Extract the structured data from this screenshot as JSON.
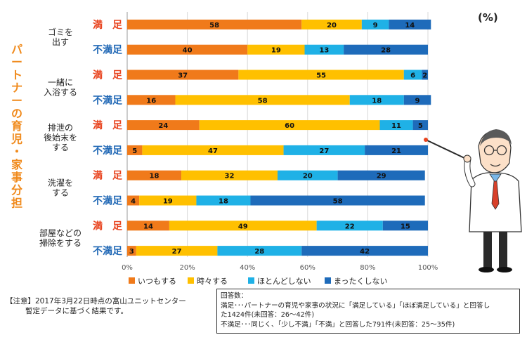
{
  "unit_label": "(%)",
  "side_title": "パートナーの育児・家事分担",
  "colors": {
    "いつもする": "#F07A1A",
    "時々する": "#FFC000",
    "ほとんどしない": "#1FB1E6",
    "まったくしない": "#1E6BBA",
    "satisfied_text": "#E8431E",
    "unsatisfied_text": "#1F67B5",
    "title_text": "#F08A1C",
    "grid": "#d8d8d8"
  },
  "chart_data": {
    "type": "bar",
    "orientation": "horizontal",
    "stacked": true,
    "xlim": [
      0,
      100
    ],
    "xticks": [
      "0%",
      "20%",
      "40%",
      "60%",
      "80%",
      "100%"
    ],
    "grid": true,
    "legend_position": "bottom",
    "groups": [
      {
        "label": "ゴミを\n出す",
        "rows": [
          {
            "status": "満　足",
            "kind": "satisfied",
            "values": [
              58,
              20,
              9,
              14
            ]
          },
          {
            "status": "不満足",
            "kind": "unsatisfied",
            "values": [
              40,
              19,
              13,
              28
            ]
          }
        ]
      },
      {
        "label": "一緒に\n入浴する",
        "rows": [
          {
            "status": "満　足",
            "kind": "satisfied",
            "values": [
              37,
              55,
              6,
              2
            ]
          },
          {
            "status": "不満足",
            "kind": "unsatisfied",
            "values": [
              16,
              58,
              18,
              9
            ]
          }
        ]
      },
      {
        "label": "排泄の\n後始末を\nする",
        "rows": [
          {
            "status": "満　足",
            "kind": "satisfied",
            "values": [
              24,
              60,
              11,
              5
            ]
          },
          {
            "status": "不満足",
            "kind": "unsatisfied",
            "values": [
              5,
              47,
              27,
              21
            ]
          }
        ]
      },
      {
        "label": "洗濯を\nする",
        "rows": [
          {
            "status": "満　足",
            "kind": "satisfied",
            "values": [
              18,
              32,
              20,
              29
            ]
          },
          {
            "status": "不満足",
            "kind": "unsatisfied",
            "values": [
              4,
              19,
              18,
              58
            ]
          }
        ]
      },
      {
        "label": "部屋などの\n掃除をする",
        "rows": [
          {
            "status": "満　足",
            "kind": "satisfied",
            "values": [
              14,
              49,
              22,
              15
            ]
          },
          {
            "status": "不満足",
            "kind": "unsatisfied",
            "values": [
              3,
              27,
              28,
              42
            ]
          }
        ]
      }
    ],
    "series": [
      {
        "name": "いつもする"
      },
      {
        "name": "時々する"
      },
      {
        "name": "ほとんどしない"
      },
      {
        "name": "まったくしない"
      }
    ]
  },
  "footnote": {
    "line1": "【注意】2017年3月22日時点の富山ユニットセンター",
    "line2": "暫定データに基づく結果です。"
  },
  "notebox": {
    "line1": "回答数：",
    "line2": "満足･･･パートナーの育児や家事の状況に「満足している」「ほぼ満足している」と回答し",
    "line3": "た1424件(未回答：26～42件)",
    "line4": "不満足･･･同じく、「少し不満」「不満」と回答した791件(未回答：25～35件)"
  }
}
